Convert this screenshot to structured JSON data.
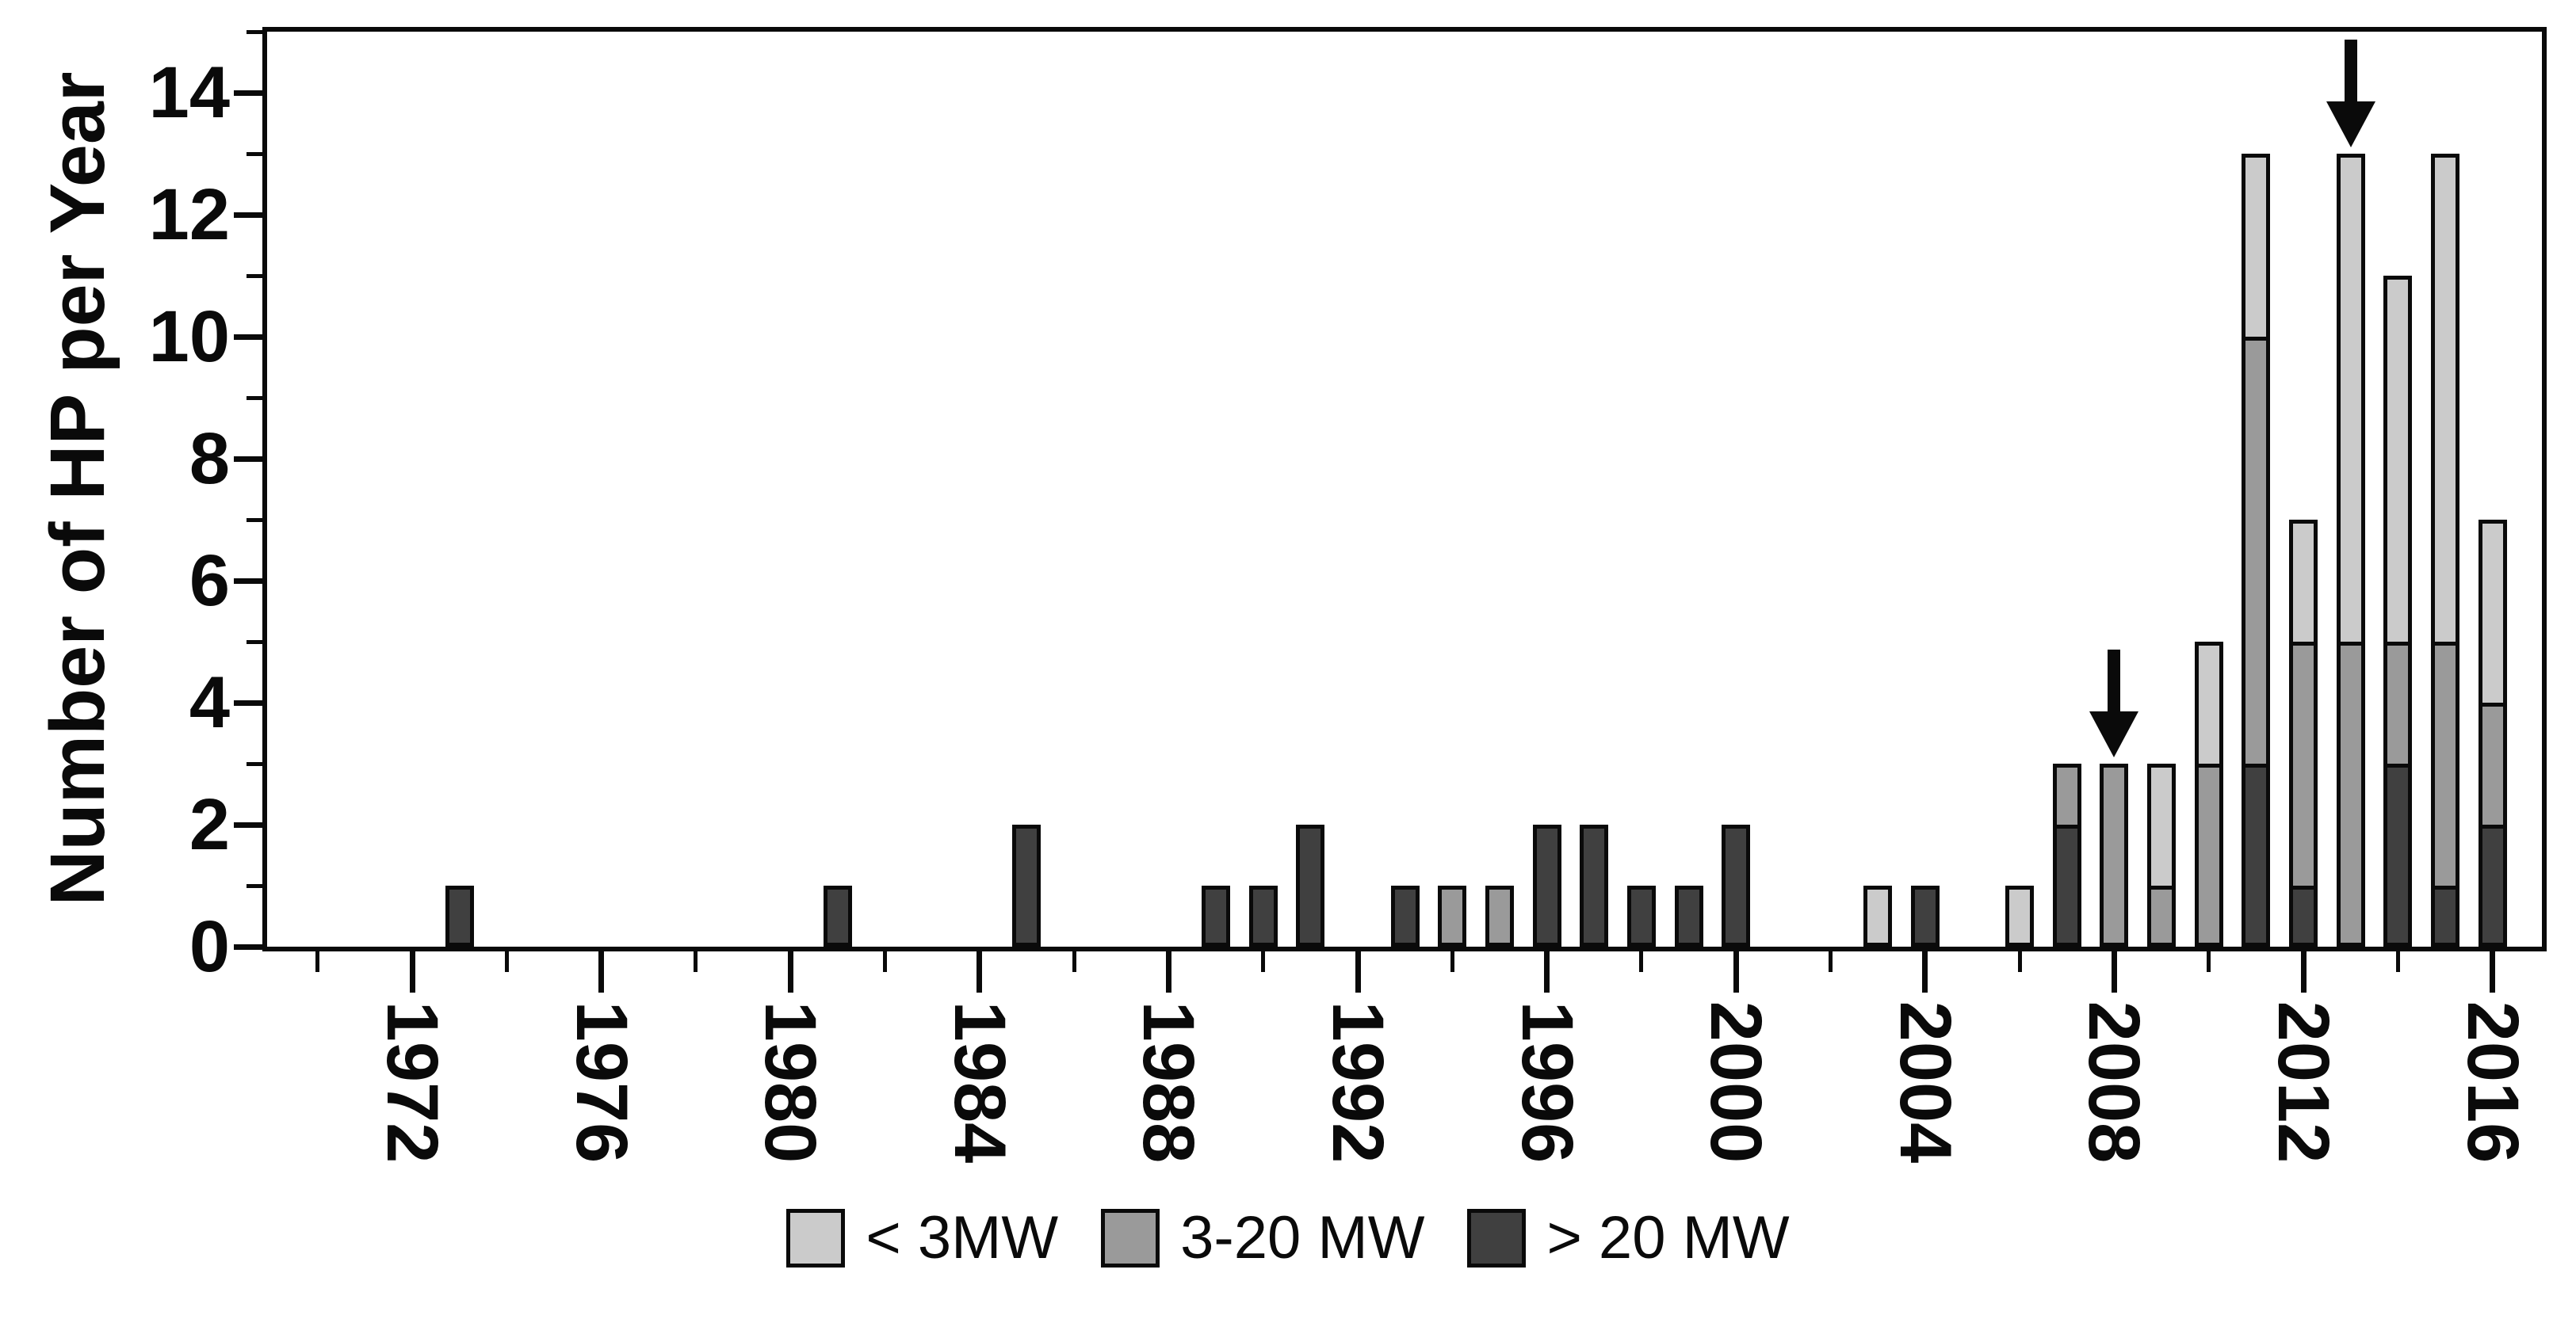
{
  "chart_data": {
    "type": "stacked-bar",
    "title": "",
    "xlabel": "",
    "ylabel": "Number of HP per Year",
    "ylim": [
      0,
      15
    ],
    "xlim": [
      1969,
      2017
    ],
    "grid": false,
    "legend_position": "bottom-center",
    "y_major_ticks": [
      0,
      2,
      4,
      6,
      8,
      10,
      12,
      14
    ],
    "y_minor_ticks": [
      1,
      3,
      5,
      7,
      9,
      11,
      13,
      15
    ],
    "x_major_tick_years": [
      1972,
      1976,
      1980,
      1984,
      1988,
      1992,
      1996,
      2000,
      2004,
      2008,
      2012,
      2016
    ],
    "x_minor_tick_years": [
      1970,
      1974,
      1978,
      1982,
      1986,
      1990,
      1994,
      1998,
      2002,
      2006,
      2010,
      2014
    ],
    "x_tick_labels": [
      "1972",
      "1976",
      "1980",
      "1984",
      "1988",
      "1992",
      "1996",
      "2000",
      "2004",
      "2008",
      "2012",
      "2016"
    ],
    "stack_order": [
      "gt20",
      "mid",
      "lt3"
    ],
    "series": [
      {
        "key": "lt3",
        "name": "< 3MW",
        "color": "#cbcbcb"
      },
      {
        "key": "mid",
        "name": "3-20 MW",
        "color": "#9a9a9a"
      },
      {
        "key": "gt20",
        "name": "> 20 MW",
        "color": "#404040"
      }
    ],
    "bars": [
      {
        "year": 1973,
        "gt20": 1,
        "mid": 0,
        "lt3": 0
      },
      {
        "year": 1981,
        "gt20": 1,
        "mid": 0,
        "lt3": 0
      },
      {
        "year": 1985,
        "gt20": 2,
        "mid": 0,
        "lt3": 0
      },
      {
        "year": 1989,
        "gt20": 1,
        "mid": 0,
        "lt3": 0
      },
      {
        "year": 1990,
        "gt20": 1,
        "mid": 0,
        "lt3": 0
      },
      {
        "year": 1991,
        "gt20": 2,
        "mid": 0,
        "lt3": 0
      },
      {
        "year": 1993,
        "gt20": 1,
        "mid": 0,
        "lt3": 0
      },
      {
        "year": 1994,
        "gt20": 0,
        "mid": 1,
        "lt3": 0
      },
      {
        "year": 1995,
        "gt20": 0,
        "mid": 1,
        "lt3": 0
      },
      {
        "year": 1996,
        "gt20": 2,
        "mid": 0,
        "lt3": 0
      },
      {
        "year": 1997,
        "gt20": 2,
        "mid": 0,
        "lt3": 0
      },
      {
        "year": 1998,
        "gt20": 1,
        "mid": 0,
        "lt3": 0
      },
      {
        "year": 1999,
        "gt20": 1,
        "mid": 0,
        "lt3": 0
      },
      {
        "year": 2000,
        "gt20": 2,
        "mid": 0,
        "lt3": 0
      },
      {
        "year": 2003,
        "gt20": 0,
        "mid": 0,
        "lt3": 1
      },
      {
        "year": 2004,
        "gt20": 1,
        "mid": 0,
        "lt3": 0
      },
      {
        "year": 2006,
        "gt20": 0,
        "mid": 0,
        "lt3": 1
      },
      {
        "year": 2007,
        "gt20": 2,
        "mid": 1,
        "lt3": 0
      },
      {
        "year": 2008,
        "gt20": 0,
        "mid": 3,
        "lt3": 0
      },
      {
        "year": 2009,
        "gt20": 0,
        "mid": 1,
        "lt3": 2
      },
      {
        "year": 2010,
        "gt20": 0,
        "mid": 3,
        "lt3": 2
      },
      {
        "year": 2011,
        "gt20": 3,
        "mid": 7,
        "lt3": 3
      },
      {
        "year": 2012,
        "gt20": 1,
        "mid": 4,
        "lt3": 2
      },
      {
        "year": 2013,
        "gt20": 0,
        "mid": 5,
        "lt3": 8
      },
      {
        "year": 2014,
        "gt20": 3,
        "mid": 2,
        "lt3": 6
      },
      {
        "year": 2015,
        "gt20": 1,
        "mid": 4,
        "lt3": 8
      },
      {
        "year": 2016,
        "gt20": 2,
        "mid": 2,
        "lt3": 3
      }
    ],
    "annotations": [
      {
        "type": "down-arrow",
        "year": 2008
      },
      {
        "type": "down-arrow",
        "year": 2013
      }
    ]
  },
  "legend": {
    "items": [
      {
        "label": "< 3MW",
        "color": "#cbcbcb"
      },
      {
        "label": "3-20 MW",
        "color": "#9a9a9a"
      },
      {
        "label": "> 20 MW",
        "color": "#404040"
      }
    ]
  }
}
